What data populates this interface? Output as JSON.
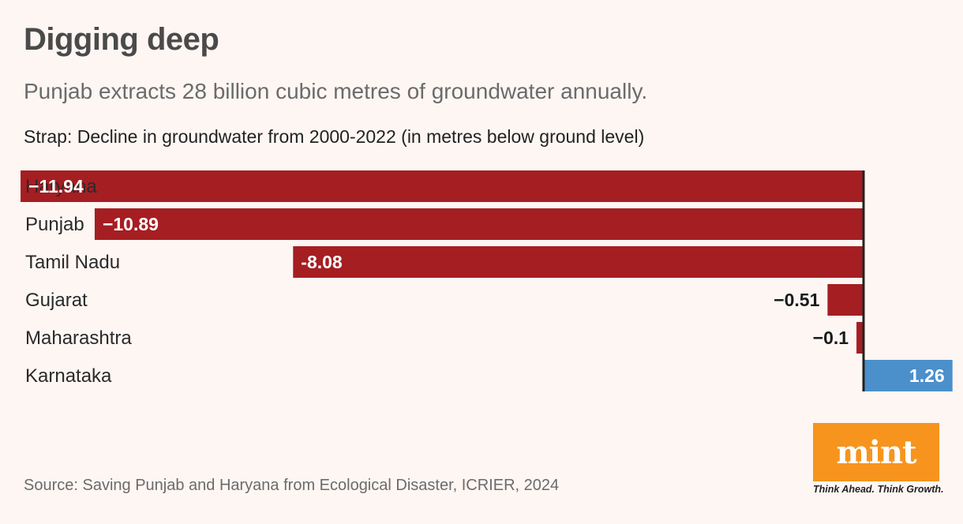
{
  "title": "Digging deep",
  "subtitle": "Punjab extracts 28 billion cubic metres of groundwater annually.",
  "strap": "Strap: Decline in groundwater from 2000-2022 (in metres below ground level)",
  "source": "Source: Saving Punjab and Haryana from Ecological Disaster, ICRIER, 2024",
  "logo": {
    "text": "mint",
    "tagline": "Think Ahead. Think Growth."
  },
  "colors": {
    "negative": "#a51e22",
    "positive": "#4b8fcb",
    "axis": "#222222",
    "background": "#fdf6f3",
    "logo": "#f7941d"
  },
  "chart_data": {
    "type": "bar",
    "orientation": "horizontal",
    "categories": [
      "Haryana",
      "Punjab",
      "Tamil Nadu",
      "Gujarat",
      "Maharashtra",
      "Karnataka"
    ],
    "values": [
      -11.94,
      -10.89,
      -8.08,
      -0.51,
      -0.1,
      1.26
    ],
    "value_labels": [
      "−11.94",
      "−10.89",
      "-8.08",
      "−0.51",
      "−0.1",
      "1.26"
    ],
    "xlim": [
      -11.94,
      1.26
    ],
    "title": "Decline in groundwater from 2000-2022 (in metres below ground level)",
    "xlabel": "",
    "ylabel": ""
  }
}
